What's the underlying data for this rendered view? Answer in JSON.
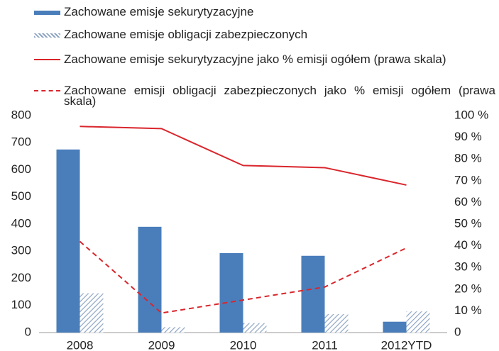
{
  "chart_data": {
    "type": "bar",
    "categories": [
      "2008",
      "2009",
      "2010",
      "2011",
      "2012YTD"
    ],
    "series": [
      {
        "name": "Zachowane emisje sekurytyzacyjne",
        "type": "bar",
        "color": "#4a7ebb",
        "values": [
          675,
          390,
          293,
          283,
          40
        ]
      },
      {
        "name": "Zachowane emisje obligacji zabezpieczonych",
        "type": "bar",
        "color": "#8fa5c3",
        "pattern": "hatch",
        "values": [
          145,
          20,
          35,
          68,
          78
        ]
      },
      {
        "name": "Zachowane emisje sekurytyzacyjne jako % emisji ogółem (prawa skala)",
        "type": "line",
        "axis": "y2",
        "color": "#d9262c",
        "line_style": "solid",
        "values": [
          95,
          94,
          77,
          76,
          68
        ]
      },
      {
        "name": "Zachowane emisji obligacji zabezpieczonych jako % emisji ogółem (prawa skala)",
        "type": "line",
        "axis": "y2",
        "color": "#d9262c",
        "line_style": "dashed",
        "values": [
          42,
          9,
          15,
          21,
          39
        ]
      }
    ],
    "ylim": [
      0,
      800
    ],
    "yticks": [
      0,
      100,
      200,
      300,
      400,
      500,
      600,
      700,
      800
    ],
    "y2lim": [
      0,
      100
    ],
    "y2ticks": [
      {
        "value": 0,
        "label": "0"
      },
      {
        "value": 10,
        "label": "10 %"
      },
      {
        "value": 20,
        "label": "20 %"
      },
      {
        "value": 30,
        "label": "30 %"
      },
      {
        "value": 40,
        "label": "40 %"
      },
      {
        "value": 50,
        "label": "50 %"
      },
      {
        "value": 60,
        "label": "60 %"
      },
      {
        "value": 70,
        "label": "70 %"
      },
      {
        "value": 80,
        "label": "80 %"
      },
      {
        "value": 90,
        "label": "90 %"
      },
      {
        "value": 100,
        "label": "100 %"
      }
    ],
    "grid": false,
    "legend": "top-left"
  }
}
